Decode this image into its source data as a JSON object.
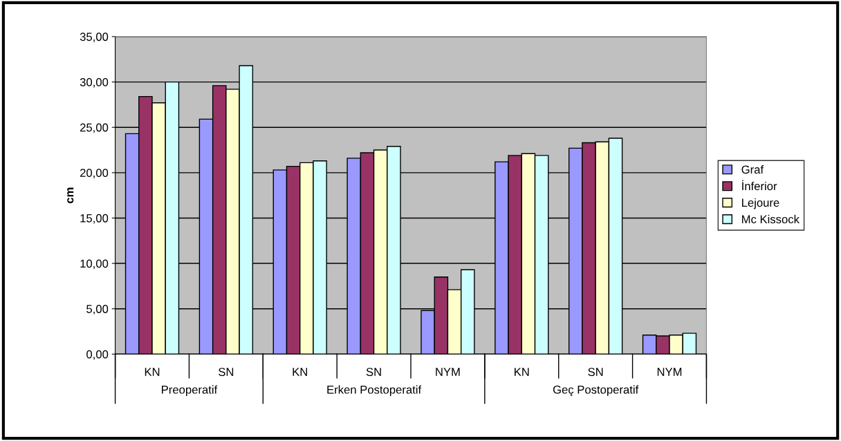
{
  "chart_data": {
    "type": "bar",
    "ylabel": "cm",
    "categories": [
      "KN",
      "SN",
      "KN",
      "SN",
      "NYM",
      "KN",
      "SN",
      "NYM"
    ],
    "annotations": [
      "Preoperatif",
      "Erken Postoperatif",
      "Geç Postoperatif"
    ],
    "series": [
      {
        "name": "Graf",
        "color": "#9999ff",
        "values": [
          24.3,
          25.9,
          20.3,
          21.6,
          4.8,
          21.2,
          22.7,
          2.1
        ]
      },
      {
        "name": "İnferior",
        "color": "#993366",
        "values": [
          28.4,
          29.6,
          20.7,
          22.2,
          8.5,
          21.9,
          23.3,
          2.0
        ]
      },
      {
        "name": "Lejoure",
        "color": "#ffffcc",
        "values": [
          27.7,
          29.2,
          21.1,
          22.5,
          7.1,
          22.1,
          23.4,
          2.1
        ]
      },
      {
        "name": "Mc Kissock",
        "color": "#ccffff",
        "values": [
          30.0,
          31.8,
          21.3,
          22.9,
          9.3,
          21.9,
          23.8,
          2.3
        ]
      }
    ],
    "ylim": [
      0,
      35
    ],
    "yticks": [
      {
        "value": 0,
        "label": "0,00"
      },
      {
        "value": 5,
        "label": "5,00"
      },
      {
        "value": 10,
        "label": "10,00"
      },
      {
        "value": 15,
        "label": "15,00"
      },
      {
        "value": 20,
        "label": "20,00"
      },
      {
        "value": 25,
        "label": "25,00"
      },
      {
        "value": 30,
        "label": "30,00"
      },
      {
        "value": 35,
        "label": "35,00"
      }
    ],
    "grid": "y",
    "legend": "right"
  }
}
